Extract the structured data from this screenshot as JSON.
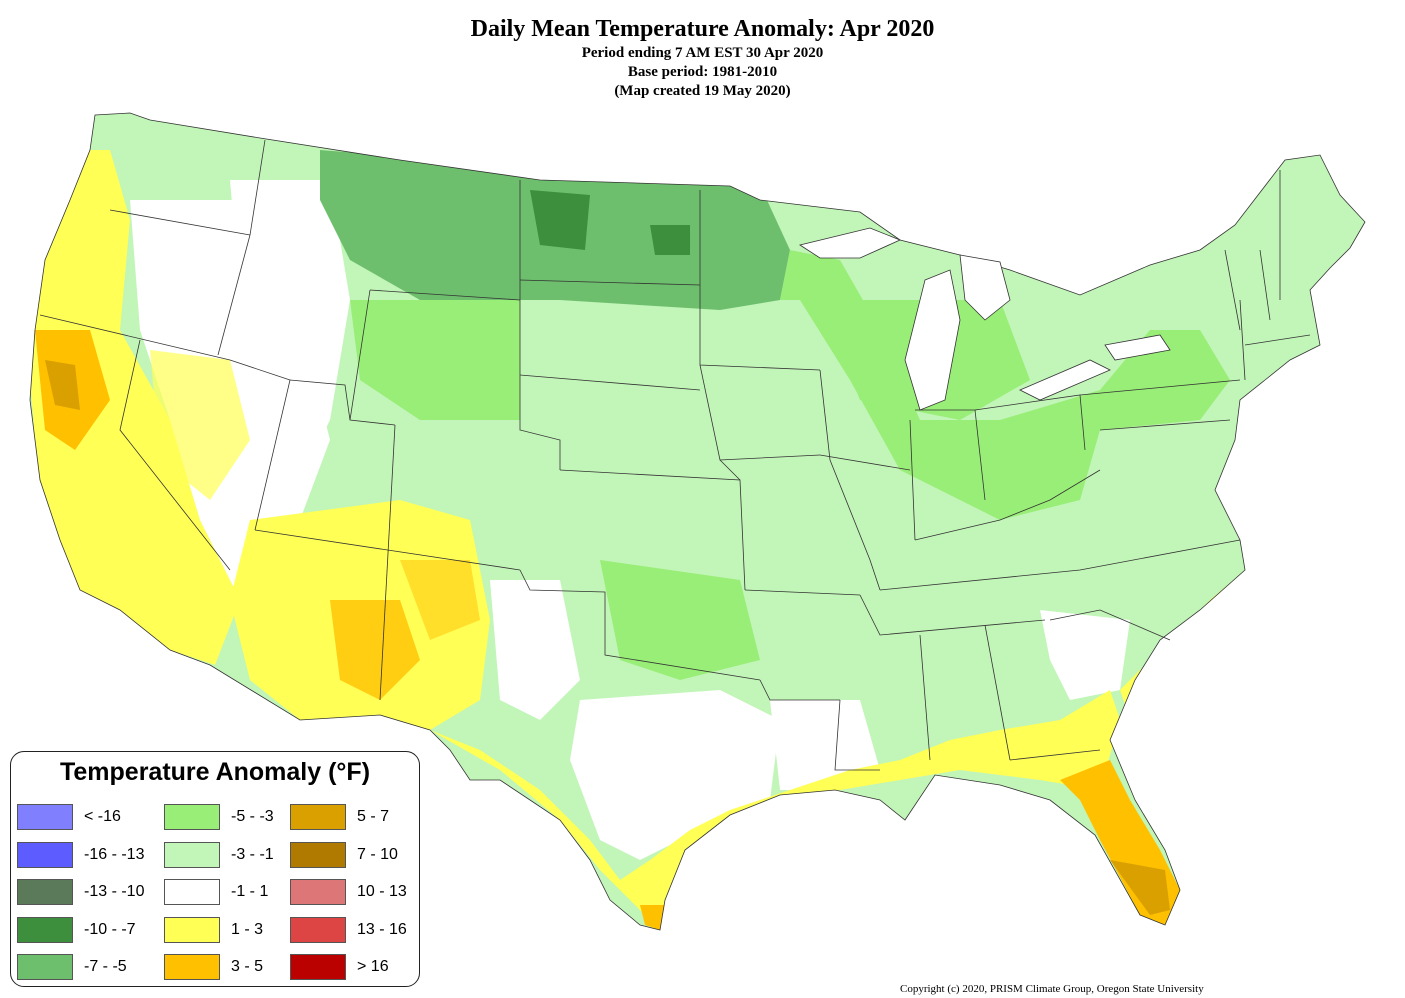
{
  "title": "Daily Mean Temperature Anomaly: Apr 2020",
  "subtitle_lines": [
    "Period ending 7 AM EST 30 Apr 2020",
    "Base period: 1981-2010",
    "(Map created 19 May 2020)"
  ],
  "legend": {
    "title": "Temperature Anomaly (°F)",
    "columns": [
      [
        {
          "label": "< -16",
          "color": "#8080ff"
        },
        {
          "label": "-16 - -13",
          "color": "#5c5cff"
        },
        {
          "label": "-13 - -10",
          "color": "#5a7a5a"
        },
        {
          "label": "-10 - -7",
          "color": "#3d8f3d"
        },
        {
          "label": "-7 - -5",
          "color": "#6dbf6d"
        }
      ],
      [
        {
          "label": "-5 - -3",
          "color": "#99ee77"
        },
        {
          "label": "-3 - -1",
          "color": "#c2f5b8"
        },
        {
          "label": "-1 - 1",
          "color": "#ffffff"
        },
        {
          "label": "1 - 3",
          "color": "#ffff55"
        },
        {
          "label": "3 - 5",
          "color": "#ffc000"
        }
      ],
      [
        {
          "label": "5 - 7",
          "color": "#d9a000"
        },
        {
          "label": "7 - 10",
          "color": "#b07a00"
        },
        {
          "label": "10 - 13",
          "color": "#dd7777"
        },
        {
          "label": "13 - 16",
          "color": "#dd4444"
        },
        {
          "label": "> 16",
          "color": "#bb0000"
        }
      ]
    ]
  },
  "copyright": "Copyright (c) 2020, PRISM Climate Group, Oregon State University"
}
